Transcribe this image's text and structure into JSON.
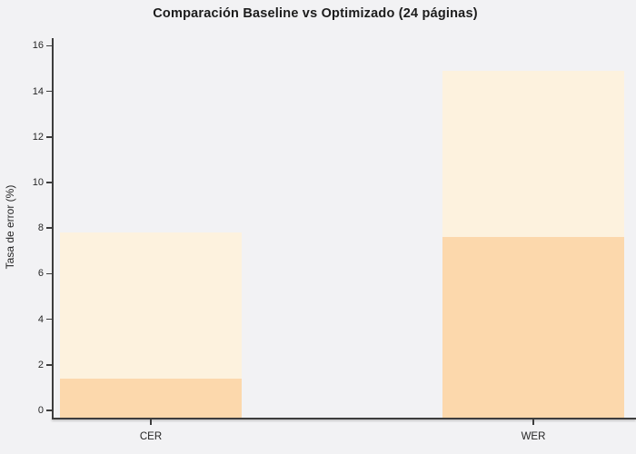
{
  "title": "Comparación Baseline vs Optimizado (24 páginas)",
  "chart_data": {
    "type": "bar",
    "title": "Comparación Baseline vs Optimizado (24 páginas)",
    "categories": [
      "CER",
      "WER"
    ],
    "series": [
      {
        "name": "Baseline",
        "values": [
          7.8,
          14.9
        ],
        "color": "#fdf2de"
      },
      {
        "name": "Optimizado",
        "values": [
          1.4,
          7.6
        ],
        "color": "#fcd8ac"
      }
    ],
    "bar_style": "overlapped",
    "xlabel": "",
    "ylabel": "Tasa de error (%)",
    "ylim": [
      0,
      16
    ],
    "yticks": [
      0,
      2,
      4,
      6,
      8,
      10,
      12,
      14,
      16
    ],
    "grid": false,
    "legend_position": "none",
    "colors": {
      "background": "#f2f2f4",
      "spine": "#3d3d3d",
      "text": "#262626"
    }
  }
}
